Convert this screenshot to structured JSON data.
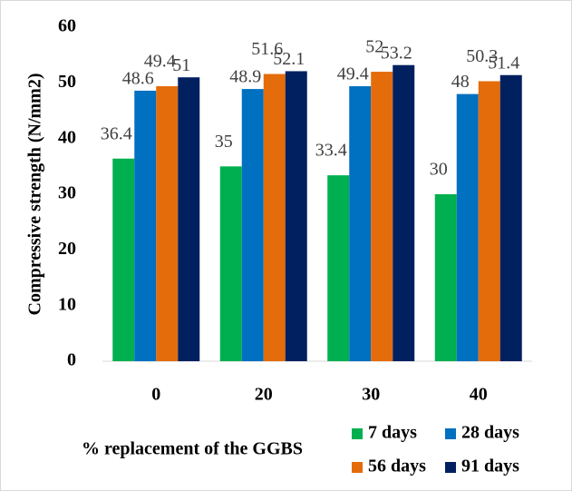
{
  "chart_data": {
    "type": "bar",
    "y_label": "Compressive strength  (N/mm2)",
    "x_label": "% replacement of the GGBS",
    "categories": [
      "0",
      "20",
      "30",
      "40"
    ],
    "series": [
      {
        "name": "7 days",
        "color": "#00b050",
        "values": [
          36.4,
          35,
          33.4,
          30
        ]
      },
      {
        "name": "28 days",
        "color": "#0070c0",
        "values": [
          48.6,
          48.9,
          49.4,
          48
        ]
      },
      {
        "name": "56 days",
        "color": "#e46c0a",
        "values": [
          49.4,
          51.6,
          52,
          50.3
        ]
      },
      {
        "name": "91 days",
        "color": "#002060",
        "values": [
          51,
          52.1,
          53.2,
          51.4
        ]
      }
    ],
    "ylim": [
      0,
      60
    ],
    "yticks": [
      0,
      10,
      20,
      30,
      40,
      50,
      60
    ],
    "grid": false,
    "legend": "bottom-right"
  }
}
